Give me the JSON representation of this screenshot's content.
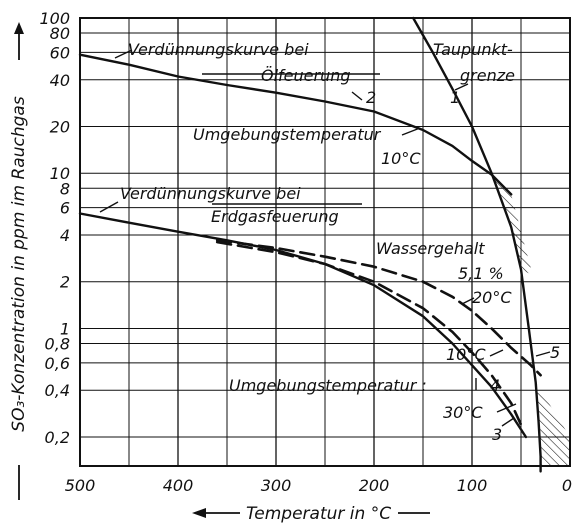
{
  "chart_data": {
    "type": "line",
    "title": "",
    "xlabel": "Temperatur in °C",
    "ylabel": "SO₃-Konzentration in ppm im Rauchgas",
    "xlim": [
      500,
      0
    ],
    "ylim": [
      0.13,
      100
    ],
    "yscale": "log",
    "x_reversed": true,
    "grid": true,
    "x_ticks": [
      500,
      400,
      300,
      200,
      100,
      0
    ],
    "y_ticks": [
      100,
      80,
      60,
      40,
      20,
      10,
      8,
      6,
      4,
      2,
      1,
      0.8,
      0.6,
      0.4,
      0.2
    ],
    "y_tick_labels": [
      "100",
      "80",
      "60",
      "40",
      "20",
      "10",
      "8",
      "6",
      "4",
      "2",
      "1",
      "0,8",
      "0,6",
      "0,4",
      "0,2"
    ],
    "series": [
      {
        "name": "1",
        "style": "solid",
        "x": [
          160,
          140,
          120,
          100,
          80,
          60,
          50,
          42,
          35,
          32,
          30,
          30
        ],
        "y": [
          100,
          60,
          35,
          20,
          10,
          4.5,
          2.4,
          1.0,
          0.45,
          0.25,
          0.15,
          0.12
        ]
      },
      {
        "name": "2",
        "style": "solid",
        "x": [
          500,
          450,
          400,
          350,
          300,
          250,
          200,
          150,
          120,
          100,
          80,
          60
        ],
        "y": [
          58,
          50,
          42,
          37,
          33,
          29,
          25,
          19,
          15,
          12,
          9.8,
          7.3
        ]
      },
      {
        "name": "3",
        "style": "solid",
        "x": [
          500,
          450,
          400,
          350,
          300,
          250,
          200,
          150,
          120,
          100,
          80,
          60,
          45
        ],
        "y": [
          5.5,
          4.8,
          4.2,
          3.7,
          3.2,
          2.6,
          1.9,
          1.2,
          0.8,
          0.58,
          0.42,
          0.28,
          0.2
        ]
      },
      {
        "name": "4",
        "style": "dashed",
        "x": [
          360,
          300,
          250,
          200,
          150,
          120,
          100,
          80,
          60,
          50
        ],
        "y": [
          3.6,
          3.1,
          2.6,
          2.0,
          1.35,
          0.95,
          0.7,
          0.5,
          0.33,
          0.24
        ]
      },
      {
        "name": "5",
        "style": "dashed",
        "x": [
          360,
          300,
          250,
          200,
          150,
          120,
          100,
          80,
          60,
          40,
          30
        ],
        "y": [
          3.7,
          3.3,
          2.9,
          2.5,
          2.0,
          1.6,
          1.3,
          1.0,
          0.75,
          0.58,
          0.5
        ]
      }
    ],
    "annotations": {
      "verd_oel_1": "Verdünnungskurve bei",
      "verd_oel_2": "Ölfeuerung",
      "label_2": "2",
      "taupunkt_1": "Taupunkt-",
      "taupunkt_2": "grenze",
      "label_1": "1",
      "umgeb_1": "Umgebungstemperatur",
      "umgeb_1_val": "10°C",
      "verd_erd_1": "Verdünnungskurve bei",
      "verd_erd_2": "Erdgasfeuerung",
      "wasser_1": "Wassergehalt",
      "wasser_2": "5,1 %",
      "temp_20": "20°C",
      "temp_10": "10°C",
      "label_5": "5",
      "umgeb_2": "Umgebungstemperatur :",
      "label_4": "4",
      "temp_30": "30°C",
      "label_3": "3"
    }
  }
}
